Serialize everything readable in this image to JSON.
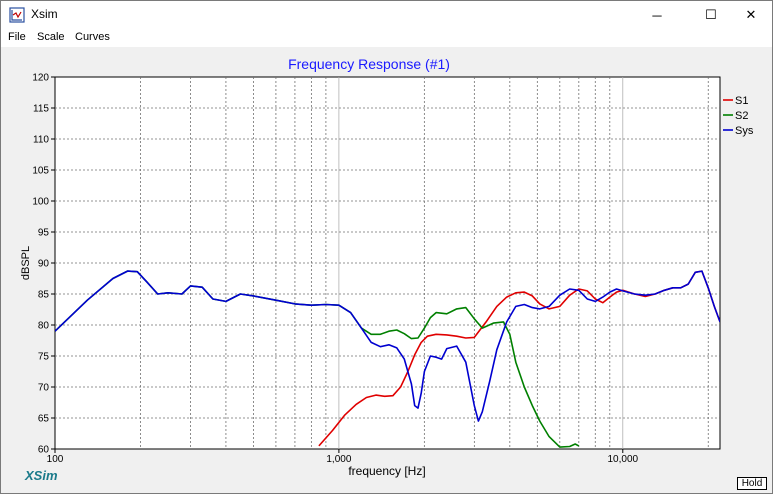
{
  "window": {
    "title": "Xsim",
    "minimize_glyph": "─",
    "maximize_glyph": "☐",
    "close_glyph": "✕"
  },
  "menu": {
    "items": [
      "File",
      "Scale",
      "Curves"
    ]
  },
  "footer": {
    "brand": "XSim",
    "hold_label": "Hold"
  },
  "colors": {
    "title": "#1a1aff",
    "s1": "#e00000",
    "s2": "#008000",
    "sys": "#0000d0",
    "brand": "#1a7a8a"
  },
  "chart_data": {
    "type": "line",
    "title": "Frequency Response (#1)",
    "xlabel": "frequency [Hz]",
    "ylabel": "dBSPL",
    "xscale": "log",
    "xlim": [
      100,
      22000
    ],
    "ylim": [
      60,
      120
    ],
    "yticks": [
      60,
      65,
      70,
      75,
      80,
      85,
      90,
      95,
      100,
      105,
      110,
      115,
      120
    ],
    "xticks": [
      {
        "value": 100,
        "label": "100"
      },
      {
        "value": 1000,
        "label": "1,000"
      },
      {
        "value": 10000,
        "label": "10,000"
      }
    ],
    "grid": true,
    "legend_position": "right",
    "series": [
      {
        "name": "S1",
        "color": "#e00000",
        "x": [
          850,
          950,
          1050,
          1150,
          1250,
          1350,
          1450,
          1550,
          1650,
          1750,
          1850,
          1950,
          2050,
          2200,
          2400,
          2600,
          2800,
          3000,
          3300,
          3600,
          3900,
          4200,
          4500,
          4800,
          5100,
          5500,
          6000,
          6500,
          7000,
          7500,
          8000,
          8500,
          9000,
          9500,
          10000,
          11000,
          12000,
          13000,
          14000,
          15000,
          16000,
          17000,
          18000,
          19000,
          20000,
          21000,
          22000
        ],
        "y": [
          60.5,
          63,
          65.5,
          67.2,
          68.3,
          68.7,
          68.5,
          68.6,
          70,
          72.5,
          75.2,
          77.2,
          78.2,
          78.5,
          78.4,
          78.2,
          77.9,
          78,
          80.5,
          83,
          84.5,
          85.2,
          85.3,
          84.7,
          83.4,
          82.6,
          83,
          84.8,
          85.8,
          85.5,
          84.2,
          83.6,
          84.5,
          85.3,
          85.6,
          85,
          84.6,
          85,
          85.6,
          86,
          86,
          86.6,
          88.5,
          88.7,
          86,
          83,
          80.5
        ]
      },
      {
        "name": "S2",
        "color": "#008000",
        "x": [
          100,
          130,
          160,
          180,
          195,
          210,
          230,
          250,
          280,
          300,
          330,
          360,
          400,
          450,
          500,
          600,
          700,
          800,
          900,
          1000,
          1100,
          1200,
          1300,
          1400,
          1500,
          1600,
          1700,
          1800,
          1900,
          2000,
          2100,
          2200,
          2400,
          2600,
          2800,
          3000,
          3200,
          3500,
          3800,
          4000,
          4200,
          4500,
          4800,
          5100,
          5500,
          6000,
          6500,
          6800,
          7000
        ],
        "y": [
          79,
          84,
          87.5,
          88.7,
          88.6,
          87,
          85,
          85.2,
          85,
          86.3,
          86.1,
          84.2,
          83.8,
          85,
          84.7,
          84,
          83.4,
          83.2,
          83.3,
          83.2,
          82,
          79.5,
          78.5,
          78.5,
          79,
          79.2,
          78.6,
          77.8,
          77.9,
          79.5,
          81.2,
          82,
          81.8,
          82.6,
          82.8,
          81,
          79.5,
          80.3,
          80.5,
          78.5,
          74,
          70,
          67,
          64.5,
          62,
          60.3,
          60.4,
          60.8,
          60.5
        ]
      },
      {
        "name": "Sys",
        "color": "#0000d0",
        "x": [
          100,
          130,
          160,
          180,
          195,
          210,
          230,
          250,
          280,
          300,
          330,
          360,
          400,
          450,
          500,
          600,
          700,
          800,
          900,
          1000,
          1100,
          1200,
          1300,
          1400,
          1500,
          1600,
          1700,
          1800,
          1850,
          1900,
          1950,
          2000,
          2100,
          2200,
          2300,
          2400,
          2600,
          2800,
          3000,
          3100,
          3200,
          3400,
          3600,
          3900,
          4200,
          4500,
          4800,
          5100,
          5500,
          6000,
          6500,
          7000,
          7500,
          8000,
          8500,
          9000,
          9500,
          10000,
          11000,
          12000,
          13000,
          14000,
          15000,
          16000,
          17000,
          18000,
          19000,
          20000,
          21000,
          22000
        ],
        "y": [
          79,
          84,
          87.5,
          88.7,
          88.6,
          87,
          85,
          85.2,
          85,
          86.3,
          86.1,
          84.2,
          83.8,
          85,
          84.7,
          84,
          83.4,
          83.2,
          83.3,
          83.2,
          82,
          79.5,
          77.2,
          76.5,
          76.8,
          76.3,
          74.5,
          70.5,
          67,
          66.6,
          69,
          72.5,
          75,
          74.8,
          74.5,
          76.2,
          76.6,
          74,
          67,
          64.5,
          66,
          71,
          76,
          80.5,
          83,
          83.3,
          82.8,
          82.6,
          83,
          84.8,
          85.8,
          85.6,
          84.2,
          83.8,
          84.5,
          85.3,
          85.8,
          85.5,
          85,
          84.8,
          85,
          85.6,
          86,
          86,
          86.6,
          88.5,
          88.7,
          86,
          83,
          80.5
        ]
      }
    ]
  }
}
